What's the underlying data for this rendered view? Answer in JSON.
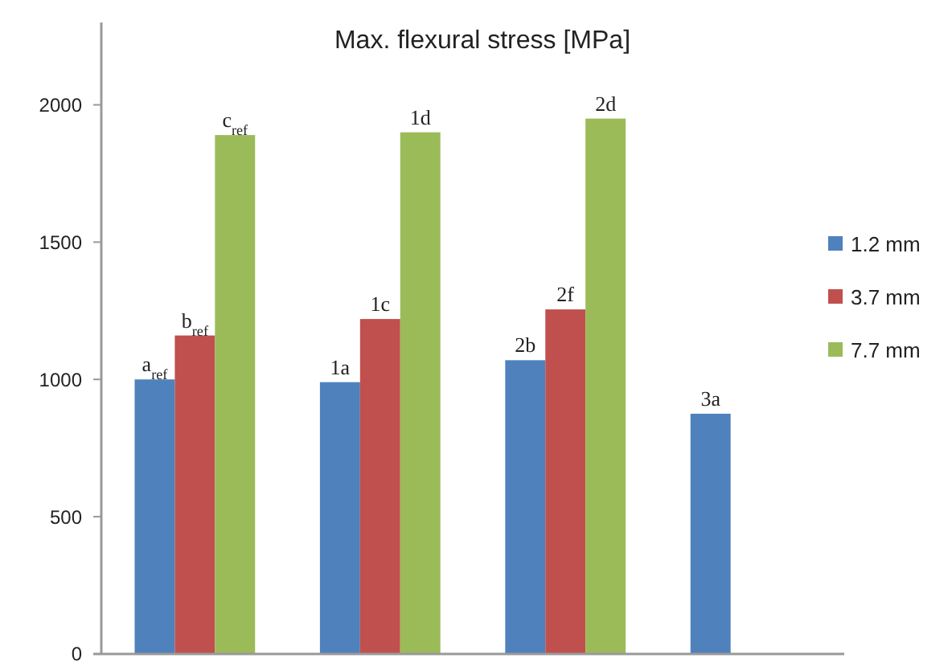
{
  "chart_data": {
    "type": "bar",
    "title": "Max. flexural stress [MPa]",
    "categories": [
      null,
      null,
      null,
      null
    ],
    "series": [
      {
        "name": "1.2 mm",
        "color": "#4f81bd",
        "values": [
          1000,
          990,
          1070,
          875
        ]
      },
      {
        "name": "3.7 mm",
        "color": "#c0504d",
        "values": [
          1160,
          1220,
          1255,
          null
        ]
      },
      {
        "name": "7.7 mm",
        "color": "#9bbb59",
        "values": [
          1890,
          1900,
          1950,
          null
        ]
      }
    ],
    "annotations": [
      {
        "text": "a$_{ref}$",
        "y": 1000
      },
      {
        "text": "b$_{ref}$",
        "y": 1160
      },
      {
        "text": "c$_{ref}$",
        "y": 1890
      },
      {
        "text": "1a",
        "y": 990
      },
      {
        "text": "1c",
        "y": 1220
      },
      {
        "text": "1d",
        "y": 1900
      },
      {
        "text": "2b",
        "y": 1070
      },
      {
        "text": "2f",
        "y": 1255
      },
      {
        "text": "2d",
        "y": 1950
      },
      {
        "text": "3a",
        "y": 875
      }
    ],
    "ylim": [
      0,
      2300
    ],
    "yticks": [
      0,
      500,
      1000,
      1500,
      2000
    ],
    "grid": false,
    "legend": "right"
  }
}
